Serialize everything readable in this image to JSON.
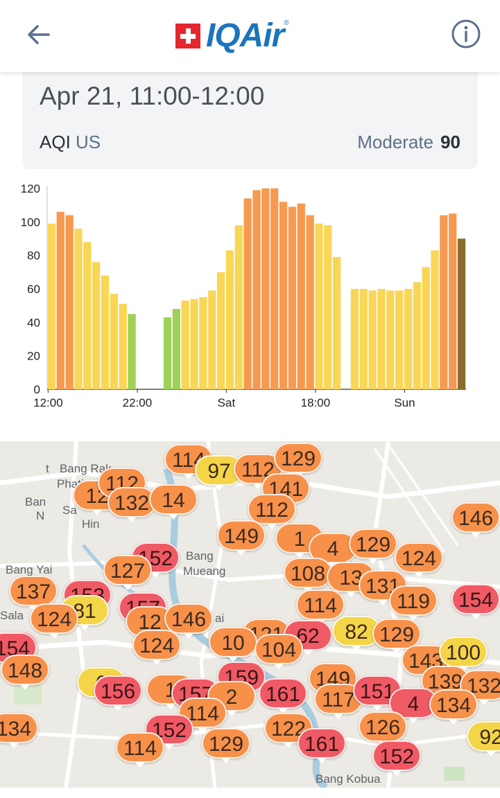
{
  "header": {
    "logo_text": "IQAir",
    "back_icon": "arrow-left-icon",
    "info_icon": "info-circle-icon"
  },
  "card": {
    "date": "Apr 21, 11:00-12:00",
    "aqi_label": "AQI",
    "aqi_unit": "US",
    "status": "Moderate",
    "value": "90"
  },
  "chart_data": {
    "type": "bar",
    "ylim": [
      0,
      120
    ],
    "yticks": [
      "0",
      "20",
      "40",
      "60",
      "80",
      "100",
      "120"
    ],
    "xticks": [
      {
        "label": "12:00",
        "index": 0
      },
      {
        "label": "22:00",
        "index": 10
      },
      {
        "label": "Sat",
        "index": 20
      },
      {
        "label": "18:00",
        "index": 30
      },
      {
        "label": "Sun",
        "index": 40
      }
    ],
    "values": [
      99,
      106,
      104,
      96,
      88,
      76,
      68,
      57,
      51,
      45,
      null,
      null,
      null,
      43,
      48,
      53,
      54,
      55,
      59,
      70,
      83,
      98,
      114,
      119,
      120,
      120,
      112,
      109,
      111,
      104,
      99,
      98,
      79,
      null,
      60,
      60,
      59,
      60,
      59,
      59,
      60,
      64,
      73,
      83,
      104,
      105,
      90
    ],
    "colors": {
      "good": "#9ed156",
      "moderate": "#f9d656",
      "usg": "#f79a4f",
      "current": "#8a6d2c"
    },
    "current_index": 46
  },
  "map": {
    "labels": [
      {
        "text": "t"
      },
      {
        "text": "Bang Rak"
      },
      {
        "text": "Phati"
      },
      {
        "text": "Ban"
      },
      {
        "text": "N"
      },
      {
        "text": "Sa"
      },
      {
        "text": "Hin"
      },
      {
        "text": "Bang Yai"
      },
      {
        "text": "Bang"
      },
      {
        "text": "Mueang"
      },
      {
        "text": "Sala"
      },
      {
        "text": "ai"
      },
      {
        "text": "Bang Kobua"
      }
    ],
    "markers": [
      {
        "v": "114",
        "c": "orange"
      },
      {
        "v": "97",
        "c": "yellow"
      },
      {
        "v": "112",
        "c": "orange"
      },
      {
        "v": "129",
        "c": "orange"
      },
      {
        "v": "12",
        "c": "orange"
      },
      {
        "v": "112",
        "c": "orange"
      },
      {
        "v": "132",
        "c": "orange"
      },
      {
        "v": "14",
        "c": "orange"
      },
      {
        "v": "141",
        "c": "orange"
      },
      {
        "v": "112",
        "c": "orange"
      },
      {
        "v": "146",
        "c": "orange"
      },
      {
        "v": "149",
        "c": "orange"
      },
      {
        "v": "1",
        "c": "orange"
      },
      {
        "v": "4",
        "c": "orange"
      },
      {
        "v": "129",
        "c": "orange"
      },
      {
        "v": "152",
        "c": "red"
      },
      {
        "v": "127",
        "c": "orange"
      },
      {
        "v": "124",
        "c": "orange"
      },
      {
        "v": "108",
        "c": "orange"
      },
      {
        "v": "13",
        "c": "orange"
      },
      {
        "v": "131",
        "c": "orange"
      },
      {
        "v": "137",
        "c": "orange"
      },
      {
        "v": "153",
        "c": "red"
      },
      {
        "v": "119",
        "c": "orange"
      },
      {
        "v": "154",
        "c": "red"
      },
      {
        "v": "81",
        "c": "yellow"
      },
      {
        "v": "124",
        "c": "orange"
      },
      {
        "v": "157",
        "c": "red"
      },
      {
        "v": "114",
        "c": "orange"
      },
      {
        "v": "156",
        "c": "red"
      },
      {
        "v": "12",
        "c": "orange"
      },
      {
        "v": "146",
        "c": "orange"
      },
      {
        "v": "121",
        "c": "orange"
      },
      {
        "v": "62",
        "c": "red"
      },
      {
        "v": "82",
        "c": "yellow"
      },
      {
        "v": "129",
        "c": "orange"
      },
      {
        "v": "154",
        "c": "red"
      },
      {
        "v": "124",
        "c": "orange"
      },
      {
        "v": "10",
        "c": "orange"
      },
      {
        "v": "104",
        "c": "orange"
      },
      {
        "v": "143",
        "c": "orange"
      },
      {
        "v": "100",
        "c": "yellow"
      },
      {
        "v": "148",
        "c": "orange"
      },
      {
        "v": "6",
        "c": "yellow"
      },
      {
        "v": "159",
        "c": "red"
      },
      {
        "v": "149",
        "c": "orange"
      },
      {
        "v": "139",
        "c": "orange"
      },
      {
        "v": "132",
        "c": "orange"
      },
      {
        "v": "156",
        "c": "red"
      },
      {
        "v": "1",
        "c": "orange"
      },
      {
        "v": "157",
        "c": "red"
      },
      {
        "v": "2",
        "c": "orange"
      },
      {
        "v": "161",
        "c": "red"
      },
      {
        "v": "117",
        "c": "orange"
      },
      {
        "v": "151",
        "c": "red"
      },
      {
        "v": "4",
        "c": "red"
      },
      {
        "v": "134",
        "c": "orange"
      },
      {
        "v": "114",
        "c": "orange"
      },
      {
        "v": "152",
        "c": "red"
      },
      {
        "v": "134",
        "c": "orange"
      },
      {
        "v": "126",
        "c": "orange"
      },
      {
        "v": "92",
        "c": "yellow"
      },
      {
        "v": "122",
        "c": "orange"
      },
      {
        "v": "161",
        "c": "red"
      },
      {
        "v": "114",
        "c": "orange"
      },
      {
        "v": "129",
        "c": "orange"
      },
      {
        "v": "152",
        "c": "red"
      }
    ]
  }
}
